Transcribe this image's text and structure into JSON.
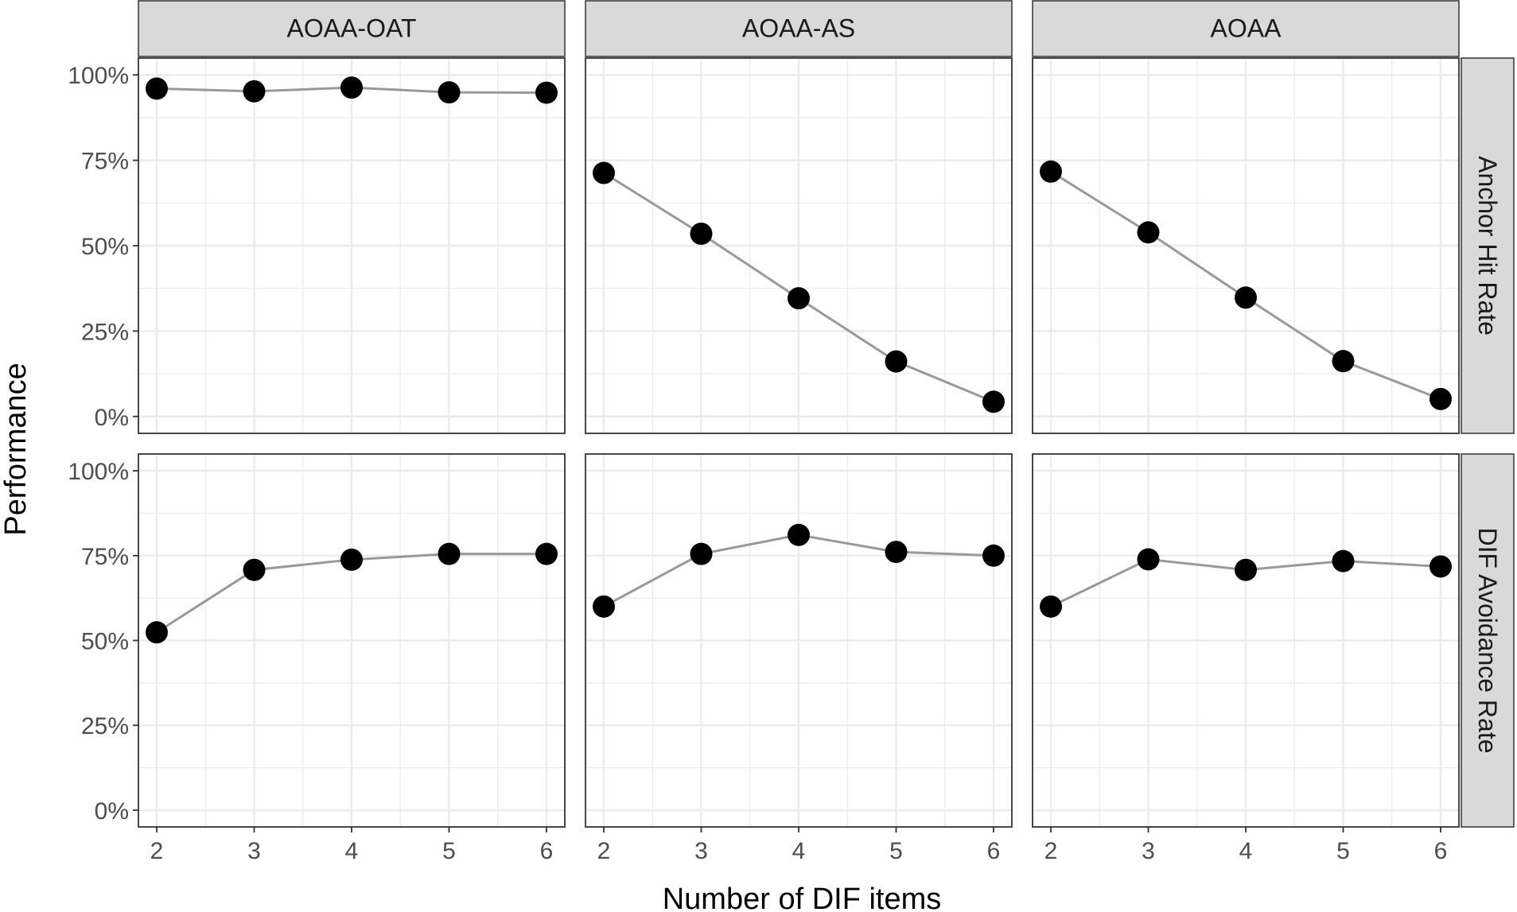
{
  "chart_data": {
    "type": "line",
    "x": [
      2,
      3,
      4,
      5,
      6
    ],
    "xlabel": "Number of DIF items",
    "ylabel": "Performance",
    "ylim": [
      0,
      1
    ],
    "y_ticks": [
      "0%",
      "25%",
      "50%",
      "75%",
      "100%"
    ],
    "x_ticks": [
      "2",
      "3",
      "4",
      "5",
      "6"
    ],
    "grid": true,
    "columns": [
      "AOAA-OAT",
      "AOAA-AS",
      "AOAA"
    ],
    "rows": [
      "Anchor Hit Rate",
      "DIF Avoidance Rate"
    ],
    "panels": [
      {
        "row": "Anchor Hit Rate",
        "column": "AOAA-OAT",
        "values": [
          0.96,
          0.952,
          0.963,
          0.949,
          0.948
        ]
      },
      {
        "row": "Anchor Hit Rate",
        "column": "AOAA-AS",
        "values": [
          0.713,
          0.535,
          0.346,
          0.161,
          0.043
        ]
      },
      {
        "row": "Anchor Hit Rate",
        "column": "AOAA",
        "values": [
          0.717,
          0.539,
          0.348,
          0.162,
          0.051
        ]
      },
      {
        "row": "DIF Avoidance Rate",
        "column": "AOAA-OAT",
        "values": [
          0.524,
          0.708,
          0.738,
          0.755,
          0.755
        ]
      },
      {
        "row": "DIF Avoidance Rate",
        "column": "AOAA-AS",
        "values": [
          0.6,
          0.755,
          0.811,
          0.761,
          0.75
        ]
      },
      {
        "row": "DIF Avoidance Rate",
        "column": "AOAA",
        "values": [
          0.6,
          0.739,
          0.708,
          0.734,
          0.718
        ]
      }
    ],
    "colors": {
      "point": "#000000",
      "line": "#999999",
      "strip_fill": "#d9d9d9",
      "grid": "#ebebeb"
    }
  }
}
